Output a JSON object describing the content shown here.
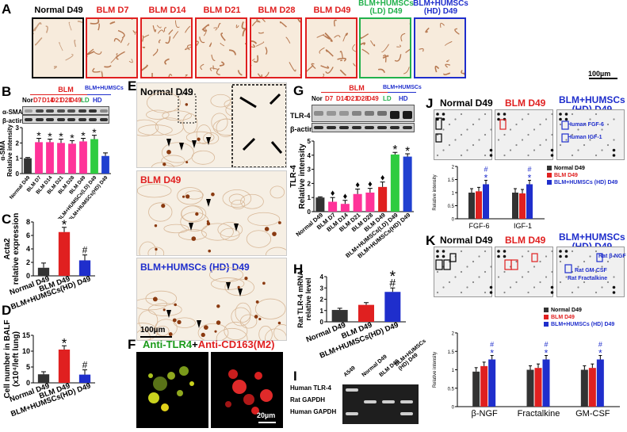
{
  "panel_A": {
    "label": "A",
    "tiles": [
      {
        "title": "Normal D49",
        "color": "#000000"
      },
      {
        "title": "BLM D7",
        "color": "#e02020"
      },
      {
        "title": "BLM D14",
        "color": "#e02020"
      },
      {
        "title": "BLM D21",
        "color": "#e02020"
      },
      {
        "title": "BLM D28",
        "color": "#e02020"
      },
      {
        "title": "BLM D49",
        "color": "#e02020"
      },
      {
        "title": "BLM+HUMSCs\n(LD) D49",
        "color": "#22b14c"
      },
      {
        "title": "BLM+HUMSCs\n(HD) D49",
        "color": "#1f2ecc"
      }
    ],
    "scale": "100µm"
  },
  "panel_B": {
    "label": "B",
    "group_blm": "BLM",
    "group_humsc": "BLM+HUMSCs",
    "lanes": [
      "Nor",
      "D7",
      "D14",
      "D21",
      "D28",
      "D49",
      "LD",
      "HD"
    ],
    "row_labels": [
      "α-SMA",
      "β-actin"
    ],
    "chart_data": {
      "type": "bar",
      "ylabel": "α-SMA\nRelative intensity",
      "ylim": [
        0,
        3
      ],
      "ticks": [
        "0",
        "1",
        "2",
        "3"
      ],
      "categories": [
        "Normal D49",
        "BLM D7",
        "BLM D14",
        "BLM D21",
        "BLM D28",
        "BLM D49",
        "BLM+HUMSCs(LD) D49",
        "BLM+HUMSCs(HD) D49"
      ],
      "values": [
        1.0,
        2.05,
        2.05,
        2.0,
        1.95,
        2.1,
        2.25,
        1.15
      ],
      "errors": [
        0.05,
        0.25,
        0.2,
        0.25,
        0.2,
        0.2,
        0.25,
        0.2
      ],
      "colors": [
        "#333333",
        "#ff3399",
        "#ff3399",
        "#ff3399",
        "#ff3399",
        "#ff3399",
        "#2ecc40",
        "#2040d0"
      ],
      "marks": [
        "",
        "*",
        "*",
        "*",
        "*",
        "*",
        "*",
        ""
      ]
    }
  },
  "panel_C": {
    "label": "C",
    "chart_data": {
      "type": "bar",
      "ylabel": "Acta2\nrelative expression",
      "ylim": [
        0,
        8
      ],
      "ticks": [
        "0",
        "2",
        "4",
        "6",
        "8"
      ],
      "categories": [
        "Normal D49",
        "BLM D49",
        "BLM+HUMSCs(HD) D49"
      ],
      "values": [
        1.2,
        6.5,
        2.3
      ],
      "errors": [
        0.7,
        0.7,
        0.8
      ],
      "colors": [
        "#333333",
        "#e02020",
        "#1f2ecc"
      ],
      "marks": [
        "",
        "*",
        "#"
      ]
    }
  },
  "panel_D": {
    "label": "D",
    "chart_data": {
      "type": "bar",
      "ylabel": "Cell number in BALF\n(x10⁴/left lung)",
      "ylim": [
        0,
        15
      ],
      "ticks": [
        "0",
        "5",
        "10",
        "15"
      ],
      "categories": [
        "Normal D49",
        "BLM D49",
        "BLM+HUMSCs(HD) D49"
      ],
      "values": [
        2.7,
        10.5,
        2.6
      ],
      "errors": [
        0.8,
        1.2,
        1.5
      ],
      "colors": [
        "#333333",
        "#e02020",
        "#1f2ecc"
      ],
      "marks": [
        "",
        "*",
        "#"
      ]
    }
  },
  "panel_E": {
    "label": "E",
    "titles": [
      "Normal D49",
      "BLM D49",
      "BLM+HUMSCs (HD) D49"
    ],
    "colors": [
      "#000000",
      "#e02020",
      "#1f2ecc"
    ],
    "scale": "100µm"
  },
  "panel_F": {
    "label": "F",
    "title_green": "Anti-TLR4",
    "title_plus": "+",
    "title_red": "Anti-CD163(M2)",
    "scale": "20µm"
  },
  "panel_G": {
    "label": "G",
    "group_blm": "BLM",
    "group_humsc": "BLM+HUMSCs",
    "lanes": [
      "Nor",
      "D7",
      "D14",
      "D21",
      "D28",
      "D49",
      "LD",
      "HD"
    ],
    "row_labels": [
      "TLR-4",
      "β-actin"
    ],
    "chart_data": {
      "type": "bar",
      "ylabel": "TLR-4\nRelative intensity",
      "ylim": [
        0,
        5
      ],
      "ticks": [
        "0",
        "1",
        "2",
        "3",
        "4",
        "5"
      ],
      "categories": [
        "Normal D49",
        "BLM D7",
        "BLM D14",
        "BLM D21",
        "BLM D28",
        "BLM D49",
        "BLM+HUMSCs(LD) D49",
        "BLM+HUMSCs(HD) D49"
      ],
      "values": [
        1.0,
        0.7,
        0.55,
        1.25,
        1.35,
        1.75,
        4.05,
        3.9
      ],
      "errors": [
        0.05,
        0.3,
        0.25,
        0.35,
        0.3,
        0.35,
        0.15,
        0.2
      ],
      "colors": [
        "#333333",
        "#ff3399",
        "#ff3399",
        "#ff3399",
        "#ff3399",
        "#e02020",
        "#2ecc40",
        "#2040d0"
      ],
      "marks": [
        "",
        "♦",
        "♦",
        "♦",
        "♦",
        "♦",
        "*",
        "*"
      ]
    }
  },
  "panel_H": {
    "label": "H",
    "chart_data": {
      "type": "bar",
      "ylabel": "Rat TLR-4 mRNA\nrelative level",
      "ylim": [
        0,
        4
      ],
      "ticks": [
        "0",
        "1",
        "2",
        "3",
        "4"
      ],
      "categories": [
        "Normal D49",
        "BLM D49",
        "BLM+HUMSCs(HD) D49"
      ],
      "values": [
        1.05,
        1.5,
        2.65
      ],
      "errors": [
        0.15,
        0.2,
        0.35
      ],
      "colors": [
        "#333333",
        "#e02020",
        "#1f2ecc"
      ],
      "marks": [
        "",
        "",
        "*\n#"
      ]
    }
  },
  "panel_I": {
    "label": "I",
    "lanes": [
      "A549",
      "Normal D49",
      "BLM D49",
      "BLM+HUMSCs\n(HD) D49"
    ],
    "rows": [
      "Human TLR-4",
      "Rat GAPDH",
      "Human GAPDH"
    ]
  },
  "panel_J": {
    "label": "J",
    "titles": [
      "Normal D49",
      "BLM D49",
      "BLM+HUMSCs\n(HD) D49"
    ],
    "colors": [
      "#000000",
      "#e02020",
      "#1f2ecc"
    ],
    "annotations": [
      "Human FGF-6",
      "Human IGF-1"
    ],
    "chart_data": {
      "type": "bar",
      "ylabel": "Relative intensity",
      "ylim": [
        0,
        2
      ],
      "ticks": [
        "0",
        "0.5",
        "1",
        "1.5",
        "2"
      ],
      "categories": [
        "FGF-6",
        "IGF-1"
      ],
      "series": [
        {
          "name": "Normal D49",
          "color": "#333333",
          "values": [
            1.0,
            1.0
          ]
        },
        {
          "name": "BLM D49",
          "color": "#e02020",
          "values": [
            1.05,
            0.97
          ]
        },
        {
          "name": "BLM+HUMSCs (HD) D49",
          "color": "#1f2ecc",
          "values": [
            1.32,
            1.32
          ]
        }
      ],
      "marks": [
        "#\n*",
        "#\n*"
      ]
    }
  },
  "panel_K": {
    "label": "K",
    "titles": [
      "Normal D49",
      "BLM D49",
      "BLM+HUMSCs\n(HD) D49"
    ],
    "colors": [
      "#000000",
      "#e02020",
      "#1f2ecc"
    ],
    "annotations": [
      "Rat β-NGF",
      "Rat GM-CSF",
      "Rat Fractalkine"
    ],
    "chart_data": {
      "type": "bar",
      "ylabel": "Relative intensity",
      "ylim": [
        0,
        2
      ],
      "ticks": [
        "0",
        "0.5",
        "1",
        "1.5",
        "2"
      ],
      "categories": [
        "β-NGF",
        "Fractalkine",
        "GM-CSF"
      ],
      "series": [
        {
          "name": "Normal D49",
          "color": "#333333",
          "values": [
            0.95,
            1.0,
            1.0
          ]
        },
        {
          "name": "BLM D49",
          "color": "#e02020",
          "values": [
            1.1,
            1.05,
            1.05
          ]
        },
        {
          "name": "BLM+HUMSCs (HD) D49",
          "color": "#1f2ecc",
          "values": [
            1.28,
            1.28,
            1.28
          ]
        }
      ],
      "marks": [
        "#\n*",
        "#\n*",
        "#\n*"
      ]
    }
  }
}
